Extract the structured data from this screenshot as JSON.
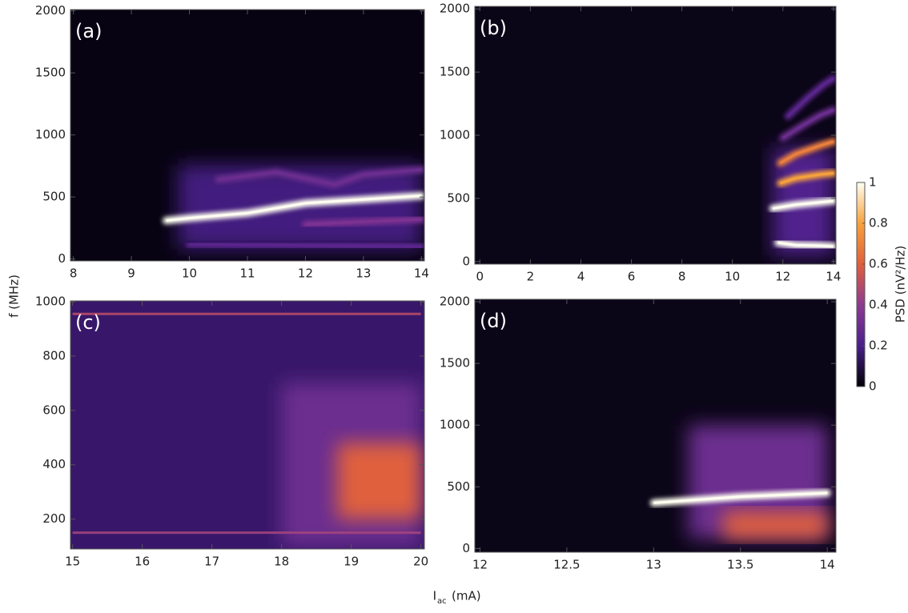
{
  "chart_data": [
    {
      "type": "heatmap",
      "panel_label": "(a)",
      "xlim": [
        7.95,
        14.05
      ],
      "ylim": [
        -15,
        2010
      ],
      "xticks": [
        8,
        9,
        10,
        11,
        12,
        13,
        14
      ],
      "yticks": [
        0,
        500,
        1000,
        1500,
        2000
      ],
      "background": 0.02,
      "blobs": [
        {
          "x": [
            9.8,
            14
          ],
          "y": [
            80,
            760
          ],
          "level": 0.18
        }
      ],
      "ridges": [
        {
          "x": [
            9.6,
            10,
            11,
            12,
            13,
            14
          ],
          "y": [
            310,
            330,
            370,
            450,
            480,
            510
          ],
          "level": 1
        },
        {
          "x": [
            10.5,
            11.5,
            12.5,
            13,
            14
          ],
          "y": [
            640,
            700,
            600,
            680,
            720
          ],
          "level": 0.3
        },
        {
          "x": [
            12,
            13,
            14
          ],
          "y": [
            280,
            300,
            320
          ],
          "level": 0.35
        },
        {
          "x": [
            10,
            12,
            14
          ],
          "y": [
            120,
            110,
            100
          ],
          "level": 0.25
        }
      ]
    },
    {
      "type": "heatmap",
      "panel_label": "(b)",
      "xlim": [
        -0.2,
        14.1
      ],
      "ylim": [
        -20,
        2020
      ],
      "xticks": [
        0,
        2,
        4,
        6,
        8,
        10,
        12,
        14
      ],
      "yticks": [
        0,
        500,
        1000,
        1500,
        2000
      ],
      "background": 0.03,
      "blobs": [
        {
          "x": [
            11.6,
            14
          ],
          "y": [
            50,
            900
          ],
          "level": 0.22
        }
      ],
      "ridges": [
        {
          "x": [
            11.8,
            12.5,
            13.5,
            14
          ],
          "y": [
            150,
            130,
            125,
            120
          ],
          "level": 1
        },
        {
          "x": [
            11.6,
            12.5,
            13.5,
            14
          ],
          "y": [
            420,
            450,
            470,
            480
          ],
          "level": 1
        },
        {
          "x": [
            11.9,
            12.5,
            13.5,
            14
          ],
          "y": [
            620,
            660,
            690,
            700
          ],
          "level": 0.8
        },
        {
          "x": [
            11.9,
            12.5,
            13.5,
            14
          ],
          "y": [
            780,
            850,
            920,
            950
          ],
          "level": 0.7
        },
        {
          "x": [
            12,
            12.8,
            13.5,
            14
          ],
          "y": [
            980,
            1080,
            1160,
            1200
          ],
          "level": 0.3
        },
        {
          "x": [
            12.2,
            13,
            13.6,
            14
          ],
          "y": [
            1150,
            1300,
            1400,
            1450
          ],
          "level": 0.25
        }
      ]
    },
    {
      "type": "heatmap",
      "panel_label": "(c)",
      "xlim": [
        14.97,
        20.05
      ],
      "ylim": [
        90,
        1003
      ],
      "xticks": [
        15,
        16,
        17,
        18,
        19,
        20
      ],
      "yticks": [
        200,
        400,
        600,
        800,
        1000
      ],
      "background": 0.15,
      "blobs": [
        {
          "x": [
            18,
            20
          ],
          "y": [
            100,
            700
          ],
          "level": 0.3
        },
        {
          "x": [
            18.8,
            20
          ],
          "y": [
            200,
            480
          ],
          "level": 0.6
        }
      ],
      "ridges": [
        {
          "x": [
            15,
            20
          ],
          "y": [
            150,
            150
          ],
          "level": 0.45
        },
        {
          "x": [
            15,
            20
          ],
          "y": [
            955,
            955
          ],
          "level": 0.5
        }
      ]
    },
    {
      "type": "heatmap",
      "panel_label": "(d)",
      "xlim": [
        11.97,
        14.05
      ],
      "ylim": [
        -30,
        2020
      ],
      "xticks": [
        12,
        12.5,
        13,
        13.5,
        14
      ],
      "yticks": [
        0,
        500,
        1000,
        1500,
        2000
      ],
      "background": 0.03,
      "blobs": [
        {
          "x": [
            13.2,
            14
          ],
          "y": [
            80,
            1000
          ],
          "level": 0.3
        },
        {
          "x": [
            13.4,
            14
          ],
          "y": [
            80,
            300
          ],
          "level": 0.6
        }
      ],
      "ridges": [
        {
          "x": [
            13,
            13.5,
            14
          ],
          "y": [
            370,
            420,
            450
          ],
          "level": 1
        }
      ]
    }
  ],
  "ylabel": "f (MHz)",
  "xlabel": {
    "main": "I",
    "sub": "ac",
    "unit": "(mA)"
  },
  "colorbar": {
    "label": "PSD (nV²/Hz)",
    "lim": [
      0,
      1
    ],
    "ticks": [
      0,
      0.2,
      0.4,
      0.6,
      0.8,
      1
    ],
    "colormap": [
      "#000004",
      "#4a1f8c",
      "#8e3a92",
      "#e0603c",
      "#f7a23c",
      "#fffff2"
    ]
  }
}
